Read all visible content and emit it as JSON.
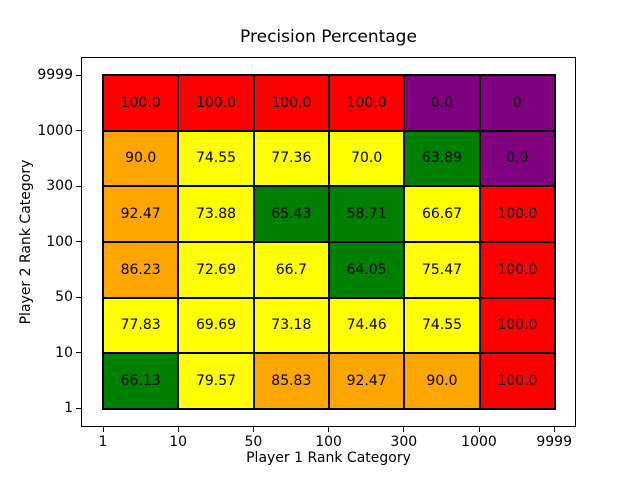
{
  "chart_data": {
    "type": "heatmap",
    "title": "Precision Percentage",
    "xlabel": "Player 1 Rank Category",
    "ylabel": "Player 2 Rank Category",
    "x_ticks": [
      "1",
      "10",
      "50",
      "100",
      "300",
      "1000",
      "9999"
    ],
    "y_ticks_top_to_bottom": [
      "9999",
      "1000",
      "300",
      "100",
      "50",
      "10",
      "1"
    ],
    "grid_on": false,
    "legend": "none",
    "palette": {
      "red": "#ff0000",
      "orange": "#ffa500",
      "yellow": "#ffff00",
      "green": "#008000",
      "purple": "#800080"
    },
    "rows_top_to_bottom": [
      [
        {
          "v": "100.0",
          "c": "red"
        },
        {
          "v": "100.0",
          "c": "red"
        },
        {
          "v": "100.0",
          "c": "red"
        },
        {
          "v": "100.0",
          "c": "red"
        },
        {
          "v": "0.0",
          "c": "purple"
        },
        {
          "v": "0",
          "c": "purple"
        }
      ],
      [
        {
          "v": "90.0",
          "c": "orange"
        },
        {
          "v": "74.55",
          "c": "yellow"
        },
        {
          "v": "77.36",
          "c": "yellow"
        },
        {
          "v": "70.0",
          "c": "yellow"
        },
        {
          "v": "63.89",
          "c": "green"
        },
        {
          "v": "0.0",
          "c": "purple"
        }
      ],
      [
        {
          "v": "92.47",
          "c": "orange"
        },
        {
          "v": "73.88",
          "c": "yellow"
        },
        {
          "v": "65.43",
          "c": "green"
        },
        {
          "v": "58.71",
          "c": "green"
        },
        {
          "v": "66.67",
          "c": "yellow"
        },
        {
          "v": "100.0",
          "c": "red"
        }
      ],
      [
        {
          "v": "86.23",
          "c": "orange"
        },
        {
          "v": "72.69",
          "c": "yellow"
        },
        {
          "v": "66.7",
          "c": "yellow"
        },
        {
          "v": "64.05",
          "c": "green"
        },
        {
          "v": "75.47",
          "c": "yellow"
        },
        {
          "v": "100.0",
          "c": "red"
        }
      ],
      [
        {
          "v": "77.83",
          "c": "yellow"
        },
        {
          "v": "69.69",
          "c": "yellow"
        },
        {
          "v": "73.18",
          "c": "yellow"
        },
        {
          "v": "74.46",
          "c": "yellow"
        },
        {
          "v": "74.55",
          "c": "yellow"
        },
        {
          "v": "100.0",
          "c": "red"
        }
      ],
      [
        {
          "v": "66.13",
          "c": "green"
        },
        {
          "v": "79.57",
          "c": "yellow"
        },
        {
          "v": "85.83",
          "c": "orange"
        },
        {
          "v": "92.47",
          "c": "orange"
        },
        {
          "v": "90.0",
          "c": "orange"
        },
        {
          "v": "100.0",
          "c": "red"
        }
      ]
    ]
  }
}
